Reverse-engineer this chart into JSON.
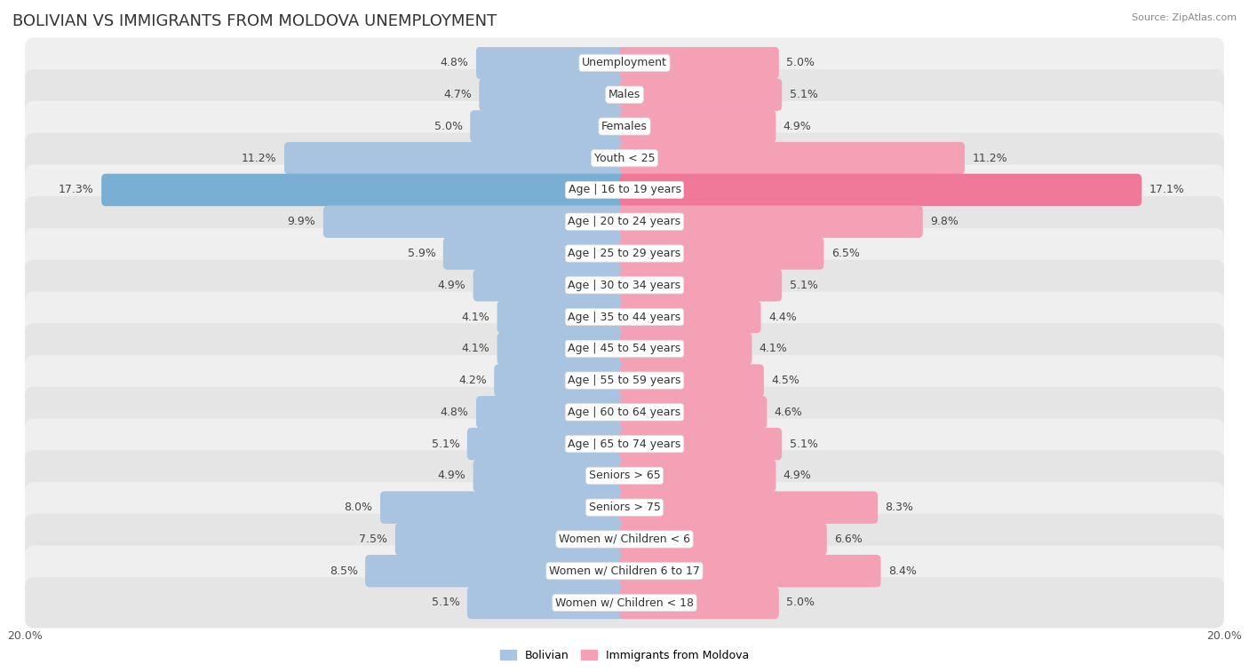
{
  "title": "BOLIVIAN VS IMMIGRANTS FROM MOLDOVA UNEMPLOYMENT",
  "source": "Source: ZipAtlas.com",
  "categories": [
    "Unemployment",
    "Males",
    "Females",
    "Youth < 25",
    "Age | 16 to 19 years",
    "Age | 20 to 24 years",
    "Age | 25 to 29 years",
    "Age | 30 to 34 years",
    "Age | 35 to 44 years",
    "Age | 45 to 54 years",
    "Age | 55 to 59 years",
    "Age | 60 to 64 years",
    "Age | 65 to 74 years",
    "Seniors > 65",
    "Seniors > 75",
    "Women w/ Children < 6",
    "Women w/ Children 6 to 17",
    "Women w/ Children < 18"
  ],
  "bolivian": [
    4.8,
    4.7,
    5.0,
    11.2,
    17.3,
    9.9,
    5.9,
    4.9,
    4.1,
    4.1,
    4.2,
    4.8,
    5.1,
    4.9,
    8.0,
    7.5,
    8.5,
    5.1
  ],
  "moldova": [
    5.0,
    5.1,
    4.9,
    11.2,
    17.1,
    9.8,
    6.5,
    5.1,
    4.4,
    4.1,
    4.5,
    4.6,
    5.1,
    4.9,
    8.3,
    6.6,
    8.4,
    5.0
  ],
  "bolivian_color": "#a8c4e0",
  "moldova_color": "#f4a0b5",
  "highlight_bolivian_color": "#7aafd4",
  "highlight_moldova_color": "#f07898",
  "axis_max": 20.0,
  "legend_bolivian": "Bolivian",
  "legend_moldova": "Immigrants from Moldova",
  "title_fontsize": 13,
  "label_fontsize": 9,
  "value_fontsize": 9,
  "axis_label_fontsize": 9,
  "row_bg_light": "#efefef",
  "row_bg_dark": "#e5e5e5",
  "row_bg_highlight": "#e0e8f0"
}
